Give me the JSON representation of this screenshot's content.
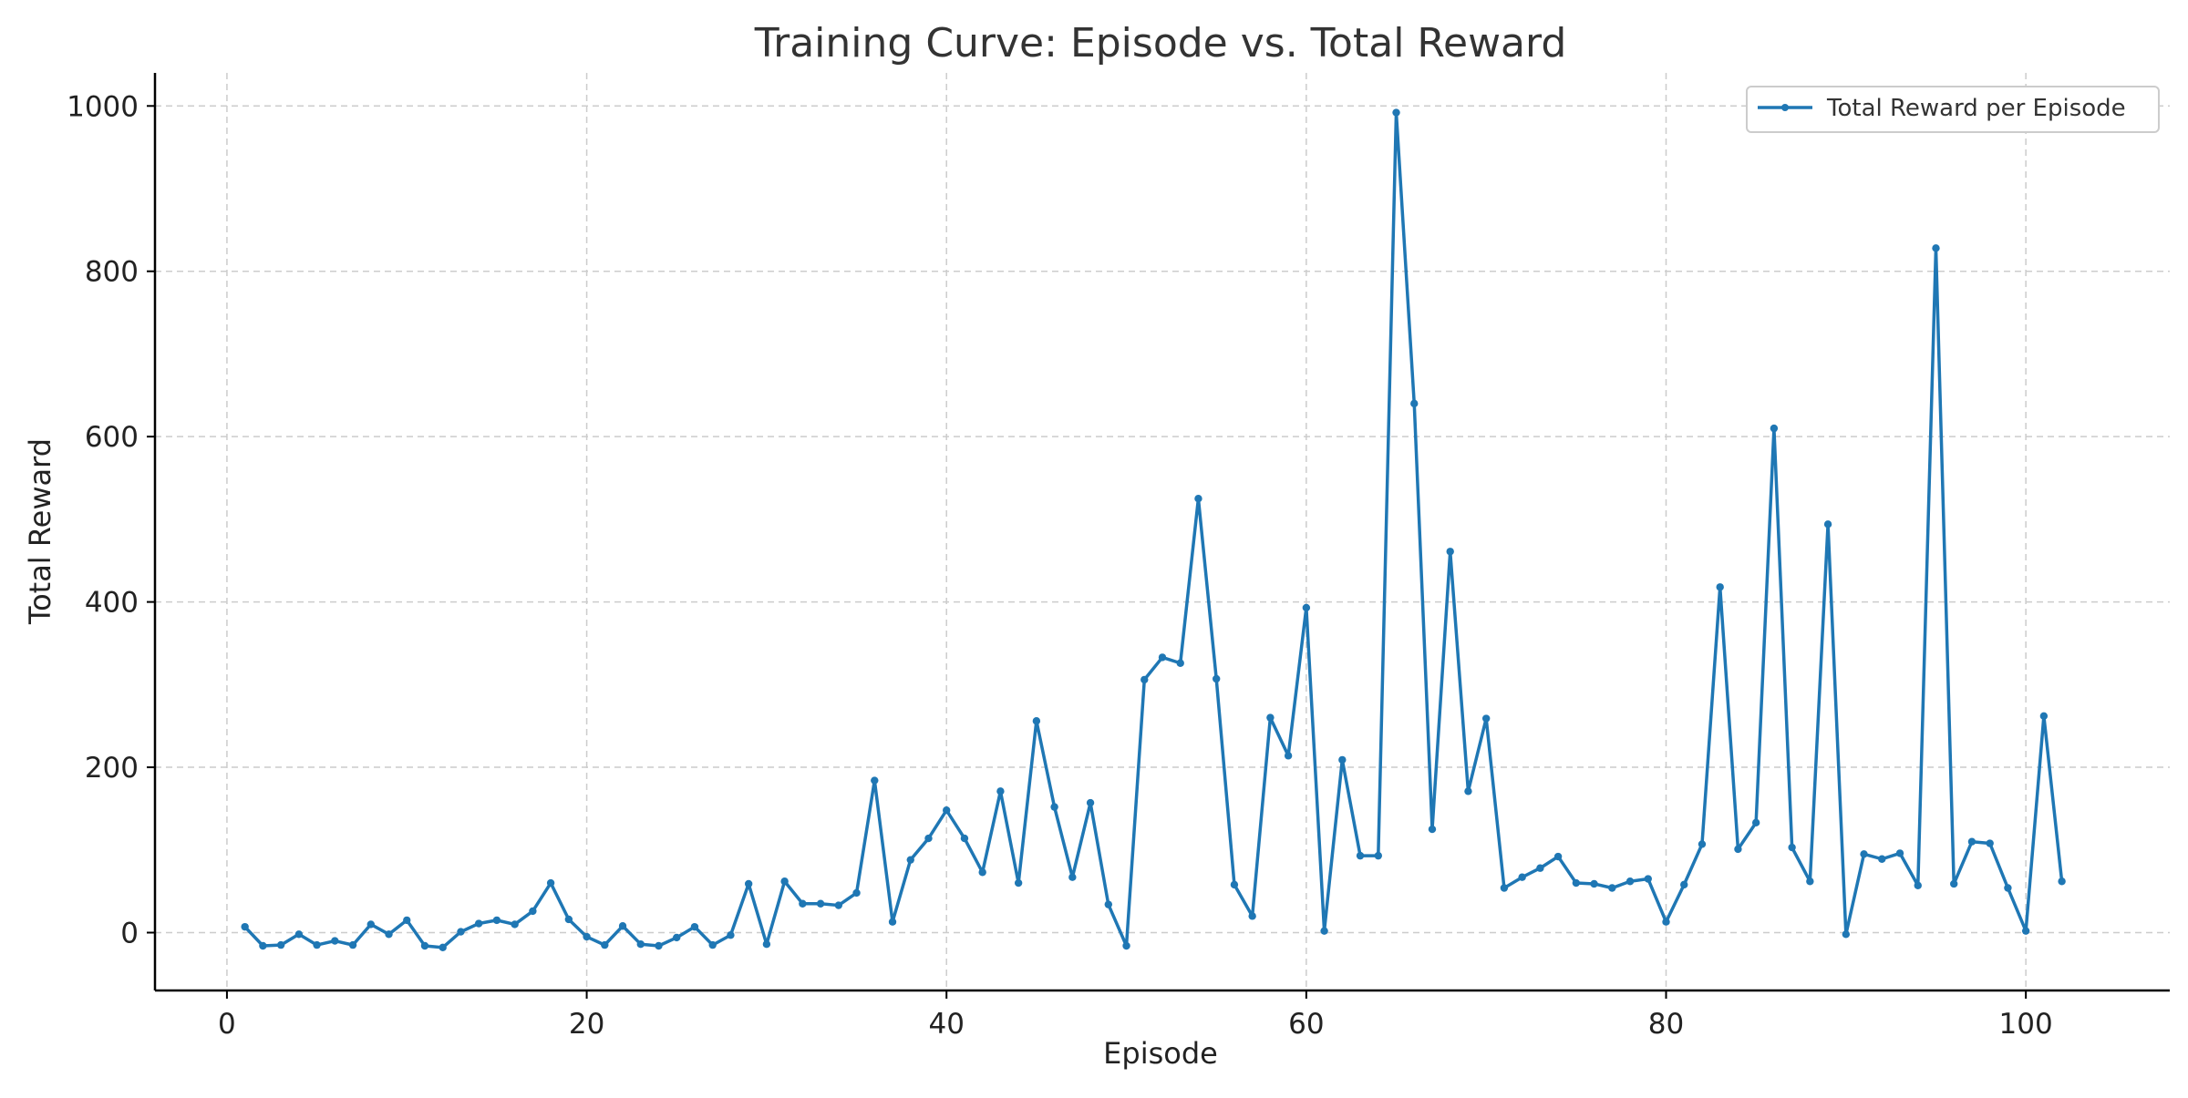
{
  "chart_data": {
    "type": "line",
    "title": "Training Curve: Episode vs. Total Reward",
    "xlabel": "Episode",
    "ylabel": "Total Reward",
    "xlim": [
      -4,
      108
    ],
    "ylim": [
      -70,
      1040
    ],
    "xticks": [
      0,
      20,
      40,
      60,
      80,
      100
    ],
    "yticks": [
      0,
      200,
      400,
      600,
      800,
      1000
    ],
    "grid": true,
    "legend_position": "upper right",
    "series": [
      {
        "name": "Total Reward per Episode",
        "color": "#1f77b4",
        "marker": "circle",
        "x": [
          1,
          2,
          3,
          4,
          5,
          6,
          7,
          8,
          9,
          10,
          11,
          12,
          13,
          14,
          15,
          16,
          17,
          18,
          19,
          20,
          21,
          22,
          23,
          24,
          25,
          26,
          27,
          28,
          29,
          30,
          31,
          32,
          33,
          34,
          35,
          36,
          37,
          38,
          39,
          40,
          41,
          42,
          43,
          44,
          45,
          46,
          47,
          48,
          49,
          50,
          51,
          52,
          53,
          54,
          55,
          56,
          57,
          58,
          59,
          60,
          61,
          62,
          63,
          64,
          65,
          66,
          67,
          68,
          69,
          70,
          71,
          72,
          73,
          74,
          75,
          76,
          77,
          78,
          79,
          80,
          81,
          82,
          83,
          84,
          85,
          86,
          87,
          88,
          89,
          90,
          91,
          92,
          93,
          94,
          95,
          96,
          97,
          98,
          99,
          100,
          101,
          102
        ],
        "y": [
          7,
          -16,
          -15,
          -2,
          -15,
          -10,
          -15,
          10,
          -2,
          15,
          -16,
          -18,
          1,
          11,
          15,
          10,
          26,
          60,
          16,
          -5,
          -15,
          8,
          -14,
          -16,
          -6,
          7,
          -15,
          -3,
          59,
          -14,
          62,
          35,
          35,
          33,
          48,
          184,
          13,
          88,
          114,
          148,
          114,
          73,
          171,
          60,
          256,
          152,
          67,
          157,
          34,
          -16,
          306,
          333,
          326,
          525,
          307,
          58,
          20,
          260,
          214,
          393,
          2,
          209,
          93,
          93,
          992,
          640,
          125,
          461,
          171,
          259,
          54,
          67,
          78,
          92,
          60,
          59,
          54,
          62,
          65,
          13,
          58,
          107,
          418,
          101,
          133,
          610,
          103,
          62,
          494,
          -2,
          95,
          89,
          96,
          57,
          828,
          59,
          110,
          108,
          54,
          2,
          262,
          62
        ]
      }
    ]
  }
}
